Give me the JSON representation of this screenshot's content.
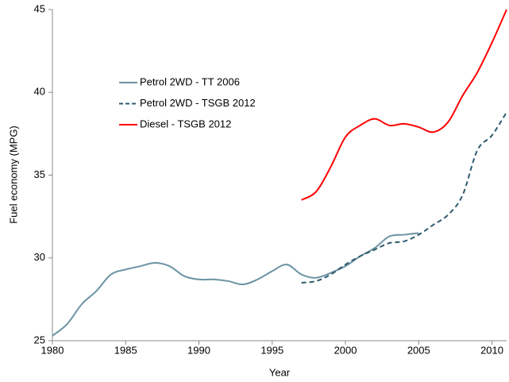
{
  "chart_data": {
    "type": "line",
    "x_label": "Year",
    "y_label": "Fuel economy (MPG)",
    "x": [
      1980,
      1981,
      1982,
      1983,
      1984,
      1985,
      1986,
      1987,
      1988,
      1989,
      1990,
      1991,
      1992,
      1993,
      1994,
      1995,
      1996,
      1997,
      1998,
      1999,
      2000,
      2001,
      2002,
      2003,
      2004,
      2005,
      2006,
      2007,
      2008,
      2009,
      2010,
      2011
    ],
    "series": [
      {
        "name": "Petrol 2WD - TT 2006",
        "color": "#6b93a3",
        "line_style": "solid",
        "values": [
          25.3,
          26.0,
          27.2,
          28.0,
          29.0,
          29.3,
          29.5,
          29.7,
          29.5,
          28.9,
          28.7,
          28.7,
          28.6,
          28.4,
          28.7,
          29.2,
          29.6,
          29.0,
          28.8,
          29.1,
          29.5,
          30.1,
          30.6,
          31.3,
          31.4,
          31.5,
          null,
          null,
          null,
          null,
          null,
          null
        ]
      },
      {
        "name": "Petrol 2WD - TSGB 2012",
        "color": "#2f5b70",
        "line_style": "dashed",
        "values": [
          null,
          null,
          null,
          null,
          null,
          null,
          null,
          null,
          null,
          null,
          null,
          null,
          null,
          null,
          null,
          null,
          null,
          28.5,
          28.6,
          29.0,
          29.6,
          30.1,
          30.5,
          30.9,
          31.0,
          31.4,
          32.0,
          32.6,
          33.8,
          36.5,
          37.4,
          38.8
        ]
      },
      {
        "name": "Diesel - TSGB 2012",
        "color": "#ff0000",
        "line_style": "solid",
        "values": [
          null,
          null,
          null,
          null,
          null,
          null,
          null,
          null,
          null,
          null,
          null,
          null,
          null,
          null,
          null,
          null,
          null,
          33.5,
          34.0,
          35.5,
          37.3,
          38.0,
          38.4,
          38.0,
          38.1,
          37.9,
          37.6,
          38.2,
          39.8,
          41.2,
          43.0,
          45.0
        ]
      }
    ],
    "xlim": [
      1980,
      2011
    ],
    "xticks": [
      1980,
      1985,
      1990,
      1995,
      2000,
      2005,
      2010
    ],
    "ylim": [
      25,
      45
    ],
    "yticks": [
      25,
      30,
      35,
      40,
      45
    ]
  }
}
